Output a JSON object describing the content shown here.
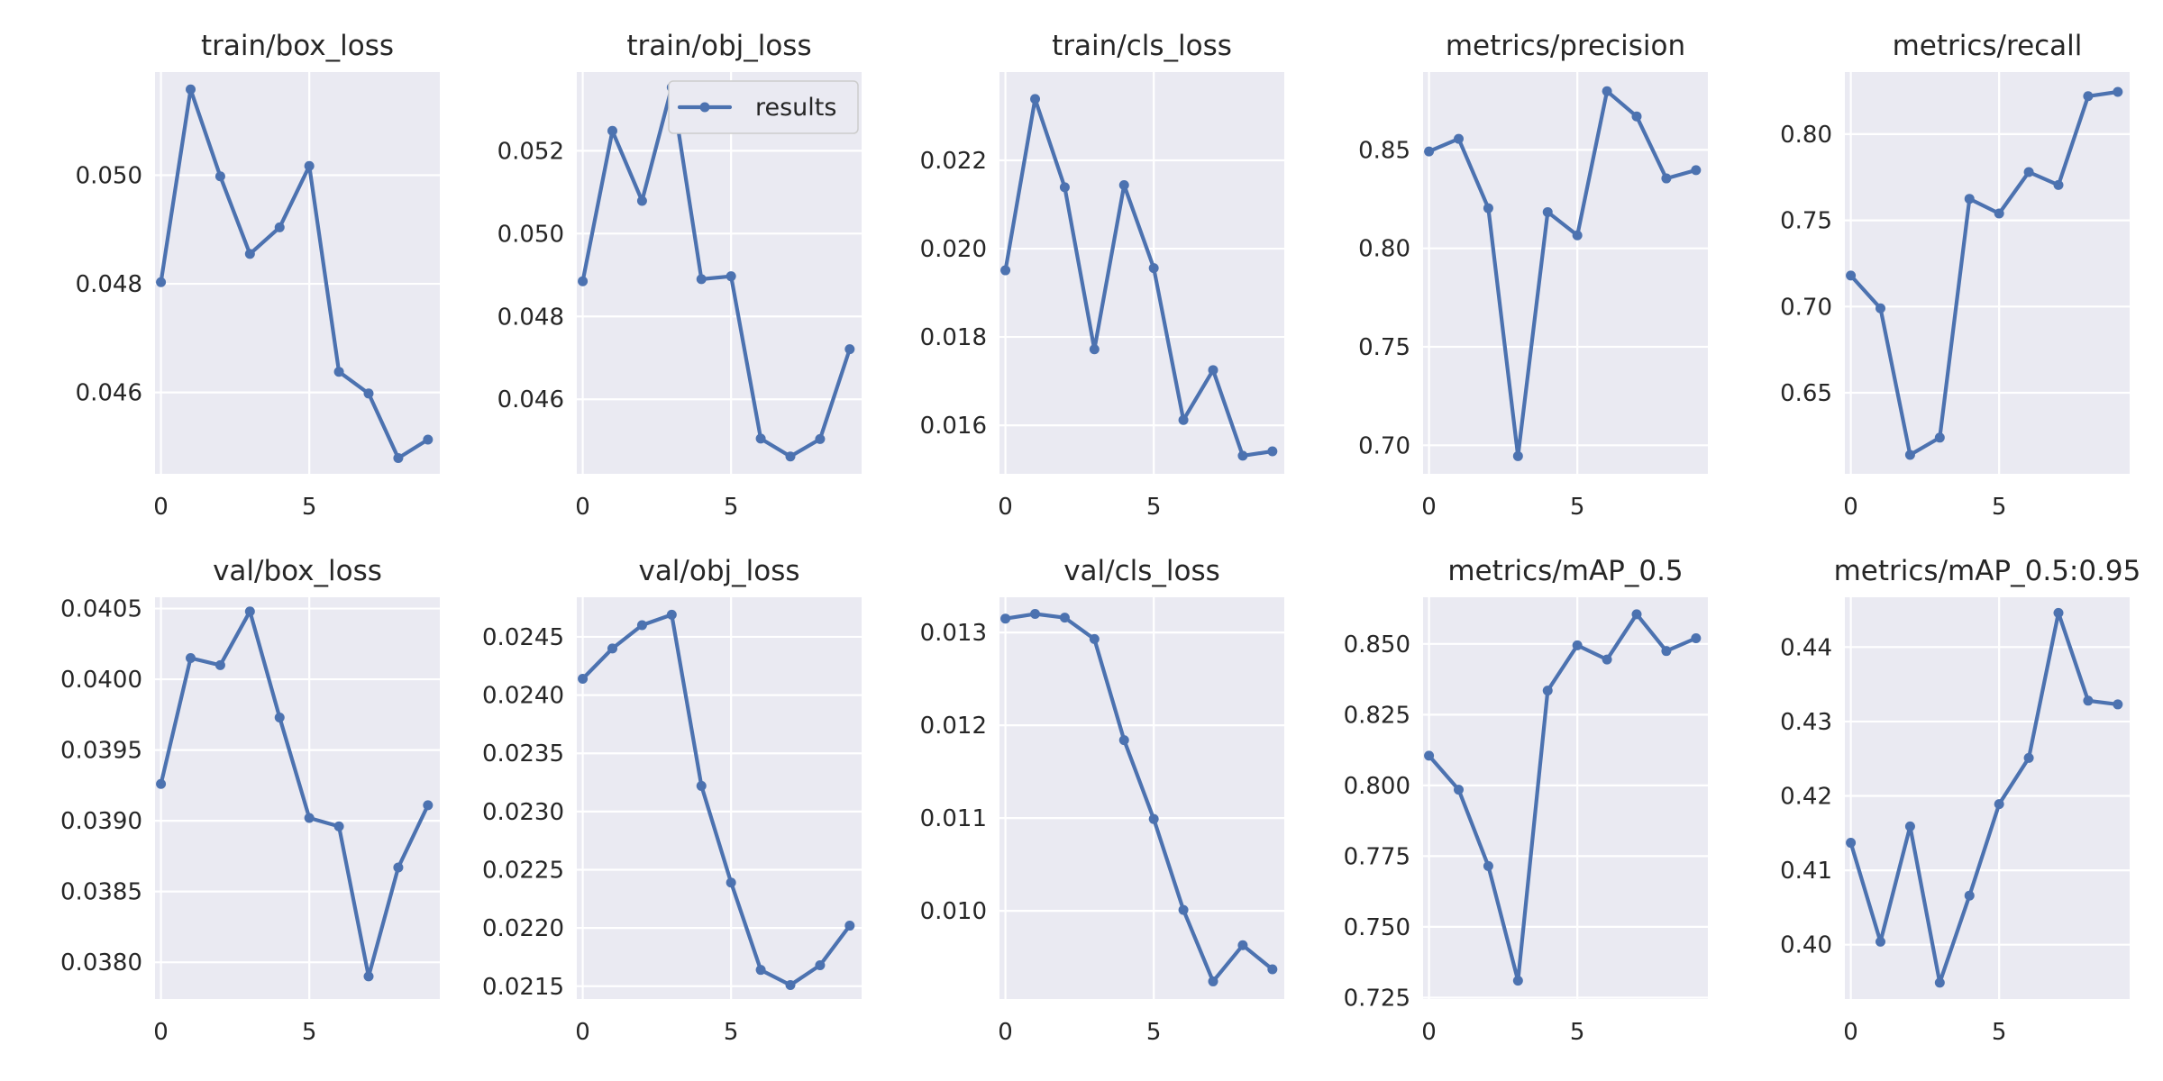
{
  "chart_data": [
    {
      "type": "line",
      "title": "train/box_loss",
      "x": [
        0,
        1,
        2,
        3,
        4,
        5,
        6,
        7,
        8,
        9
      ],
      "yticks": [
        0.046,
        0.048,
        0.05
      ],
      "ytick_labels": [
        "0.046",
        "0.048",
        "0.050"
      ],
      "xticks": [
        0,
        5
      ],
      "ylim": [
        0.0445,
        0.0519
      ],
      "xlim": [
        -0.2,
        9.4
      ],
      "series": [
        {
          "name": "results",
          "values": [
            0.04803,
            0.05158,
            0.04998,
            0.04855,
            0.04904,
            0.05017,
            0.04638,
            0.04598,
            0.04479,
            0.04513
          ]
        }
      ]
    },
    {
      "type": "line",
      "title": "train/obj_loss",
      "x": [
        0,
        1,
        2,
        3,
        4,
        5,
        6,
        7,
        8,
        9
      ],
      "yticks": [
        0.046,
        0.048,
        0.05,
        0.052
      ],
      "ytick_labels": [
        "0.046",
        "0.048",
        "0.050",
        "0.052"
      ],
      "xticks": [
        0,
        5
      ],
      "ylim": [
        0.0442,
        0.0539
      ],
      "xlim": [
        -0.2,
        9.4
      ],
      "series": [
        {
          "name": "results",
          "values": [
            0.04885,
            0.05248,
            0.05079,
            0.05353,
            0.0489,
            0.04897,
            0.04505,
            0.04462,
            0.04504,
            0.04721
          ]
        }
      ]
    },
    {
      "type": "line",
      "title": "train/cls_loss",
      "x": [
        0,
        1,
        2,
        3,
        4,
        5,
        6,
        7,
        8,
        9
      ],
      "yticks": [
        0.016,
        0.018,
        0.02,
        0.022
      ],
      "ytick_labels": [
        "0.016",
        "0.018",
        "0.020",
        "0.022"
      ],
      "xticks": [
        0,
        5
      ],
      "ylim": [
        0.0149,
        0.024
      ],
      "xlim": [
        -0.2,
        9.4
      ],
      "series": [
        {
          "name": "results",
          "values": [
            0.01951,
            0.02339,
            0.02139,
            0.01772,
            0.02144,
            0.01956,
            0.01612,
            0.01725,
            0.01531,
            0.01541
          ]
        }
      ]
    },
    {
      "type": "line",
      "title": "metrics/precision",
      "x": [
        0,
        1,
        2,
        3,
        4,
        5,
        6,
        7,
        8,
        9
      ],
      "yticks": [
        0.7,
        0.75,
        0.8,
        0.85
      ],
      "ytick_labels": [
        "0.70",
        "0.75",
        "0.80",
        "0.85"
      ],
      "xticks": [
        0,
        5
      ],
      "ylim": [
        0.6855,
        0.8895
      ],
      "xlim": [
        -0.2,
        9.4
      ],
      "series": [
        {
          "name": "results",
          "values": [
            0.8492,
            0.8556,
            0.8204,
            0.6945,
            0.8184,
            0.8066,
            0.8798,
            0.867,
            0.8355,
            0.8397
          ]
        }
      ]
    },
    {
      "type": "line",
      "title": "metrics/recall",
      "x": [
        0,
        1,
        2,
        3,
        4,
        5,
        6,
        7,
        8,
        9
      ],
      "yticks": [
        0.65,
        0.7,
        0.75,
        0.8
      ],
      "ytick_labels": [
        "0.65",
        "0.70",
        "0.75",
        "0.80"
      ],
      "xticks": [
        0,
        5
      ],
      "ylim": [
        0.603,
        0.836
      ],
      "xlim": [
        -0.2,
        9.4
      ],
      "series": [
        {
          "name": "results",
          "values": [
            0.718,
            0.699,
            0.614,
            0.624,
            0.7625,
            0.754,
            0.778,
            0.7705,
            0.822,
            0.8245
          ]
        }
      ]
    },
    {
      "type": "line",
      "title": "val/box_loss",
      "x": [
        0,
        1,
        2,
        3,
        4,
        5,
        6,
        7,
        8,
        9
      ],
      "yticks": [
        0.038,
        0.0385,
        0.039,
        0.0395,
        0.04,
        0.0405
      ],
      "ytick_labels": [
        "0.0380",
        "0.0385",
        "0.0390",
        "0.0395",
        "0.0400",
        "0.0405"
      ],
      "xticks": [
        0,
        5
      ],
      "ylim": [
        0.03774,
        0.04058
      ],
      "xlim": [
        -0.2,
        9.4
      ],
      "series": [
        {
          "name": "results",
          "values": [
            0.03926,
            0.04015,
            0.0401,
            0.04048,
            0.03973,
            0.03902,
            0.03896,
            0.0379,
            0.03867,
            0.03911
          ]
        }
      ]
    },
    {
      "type": "line",
      "title": "val/obj_loss",
      "x": [
        0,
        1,
        2,
        3,
        4,
        5,
        6,
        7,
        8,
        9
      ],
      "yticks": [
        0.0215,
        0.022,
        0.0225,
        0.023,
        0.0235,
        0.024,
        0.0245
      ],
      "ytick_labels": [
        "0.0215",
        "0.0220",
        "0.0225",
        "0.0230",
        "0.0235",
        "0.0240",
        "0.0245"
      ],
      "xticks": [
        0,
        5
      ],
      "ylim": [
        0.02139,
        0.02484
      ],
      "xlim": [
        -0.2,
        9.4
      ],
      "series": [
        {
          "name": "results",
          "values": [
            0.02414,
            0.0244,
            0.0246,
            0.02469,
            0.02322,
            0.02239,
            0.02164,
            0.02151,
            0.02168,
            0.02202
          ]
        }
      ]
    },
    {
      "type": "line",
      "title": "val/cls_loss",
      "x": [
        0,
        1,
        2,
        3,
        4,
        5,
        6,
        7,
        8,
        9
      ],
      "yticks": [
        0.01,
        0.011,
        0.012,
        0.013
      ],
      "ytick_labels": [
        "0.010",
        "0.011",
        "0.012",
        "0.013"
      ],
      "xticks": [
        0,
        5
      ],
      "ylim": [
        0.00905,
        0.01338
      ],
      "xlim": [
        -0.2,
        9.4
      ],
      "series": [
        {
          "name": "results",
          "values": [
            0.01315,
            0.0132,
            0.01316,
            0.01293,
            0.01184,
            0.01099,
            0.01001,
            0.00924,
            0.00963,
            0.00937
          ]
        }
      ]
    },
    {
      "type": "line",
      "title": "metrics/mAP_0.5",
      "x": [
        0,
        1,
        2,
        3,
        4,
        5,
        6,
        7,
        8,
        9
      ],
      "yticks": [
        0.725,
        0.75,
        0.775,
        0.8,
        0.825,
        0.85
      ],
      "ytick_labels": [
        "0.725",
        "0.750",
        "0.775",
        "0.800",
        "0.825",
        "0.850"
      ],
      "xticks": [
        0,
        5
      ],
      "ylim": [
        0.7245,
        0.8665
      ],
      "xlim": [
        -0.2,
        9.4
      ],
      "series": [
        {
          "name": "results",
          "values": [
            0.8105,
            0.7985,
            0.7715,
            0.731,
            0.8335,
            0.8495,
            0.8445,
            0.8605,
            0.8475,
            0.852
          ]
        }
      ]
    },
    {
      "type": "line",
      "title": "metrics/mAP_0.5:0.95",
      "x": [
        0,
        1,
        2,
        3,
        4,
        5,
        6,
        7,
        8,
        9
      ],
      "yticks": [
        0.4,
        0.41,
        0.42,
        0.43,
        0.44
      ],
      "ytick_labels": [
        "0.40",
        "0.41",
        "0.42",
        "0.43",
        "0.44"
      ],
      "xticks": [
        0,
        5
      ],
      "ylim": [
        0.3927,
        0.4467
      ],
      "xlim": [
        -0.2,
        9.4
      ],
      "series": [
        {
          "name": "results",
          "values": [
            0.4137,
            0.4004,
            0.4159,
            0.3949,
            0.4066,
            0.4189,
            0.4251,
            0.4446,
            0.4328,
            0.4323
          ]
        }
      ]
    }
  ],
  "legend": {
    "label": "results",
    "panel": 1,
    "location": "upper right"
  },
  "colors": {
    "series": "#4c72b0",
    "axes_bg": "#eaeaf2",
    "grid": "#ffffff",
    "text": "#262626"
  }
}
